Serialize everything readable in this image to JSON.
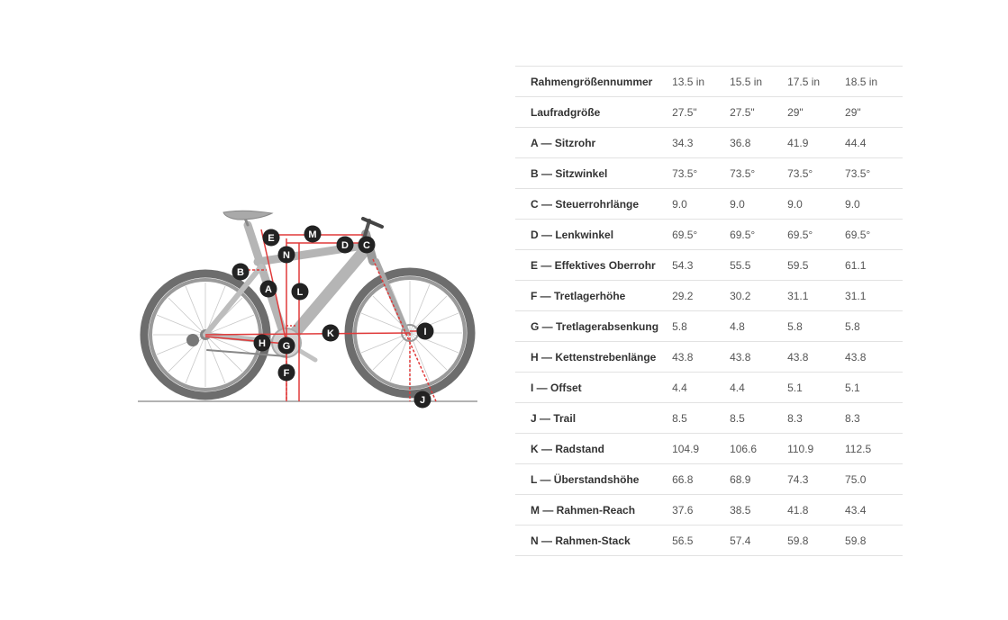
{
  "header": {
    "label": "Rahmengrößennummer",
    "sizes": [
      "13.5 in",
      "15.5 in",
      "17.5 in",
      "18.5 in"
    ]
  },
  "rows": [
    {
      "label": "Laufradgröße",
      "values": [
        "27.5\"",
        "27.5\"",
        "29\"",
        "29\""
      ]
    },
    {
      "label": "A — Sitzrohr",
      "values": [
        "34.3",
        "36.8",
        "41.9",
        "44.4"
      ]
    },
    {
      "label": "B — Sitzwinkel",
      "values": [
        "73.5°",
        "73.5°",
        "73.5°",
        "73.5°"
      ]
    },
    {
      "label": "C — Steuerrohrlänge",
      "values": [
        "9.0",
        "9.0",
        "9.0",
        "9.0"
      ]
    },
    {
      "label": "D — Lenkwinkel",
      "values": [
        "69.5°",
        "69.5°",
        "69.5°",
        "69.5°"
      ]
    },
    {
      "label": "E — Effektives Oberrohr",
      "values": [
        "54.3",
        "55.5",
        "59.5",
        "61.1"
      ]
    },
    {
      "label": "F — Tretlagerhöhe",
      "values": [
        "29.2",
        "30.2",
        "31.1",
        "31.1"
      ]
    },
    {
      "label": "G — Tretlagerabsenkung",
      "values": [
        "5.8",
        "4.8",
        "5.8",
        "5.8"
      ]
    },
    {
      "label": "H — Kettenstrebenlänge",
      "values": [
        "43.8",
        "43.8",
        "43.8",
        "43.8"
      ]
    },
    {
      "label": "I — Offset",
      "values": [
        "4.4",
        "4.4",
        "5.1",
        "5.1"
      ]
    },
    {
      "label": "J — Trail",
      "values": [
        "8.5",
        "8.5",
        "8.3",
        "8.3"
      ]
    },
    {
      "label": "K — Radstand",
      "values": [
        "104.9",
        "106.6",
        "110.9",
        "112.5"
      ]
    },
    {
      "label": "L — Überstandshöhe",
      "values": [
        "66.8",
        "68.9",
        "74.3",
        "75.0"
      ]
    },
    {
      "label": "M — Rahmen-Reach",
      "values": [
        "37.6",
        "38.5",
        "41.8",
        "43.4"
      ]
    },
    {
      "label": "N — Rahmen-Stack",
      "values": [
        "56.5",
        "57.4",
        "59.8",
        "59.8"
      ]
    }
  ],
  "diagram": {
    "markers": [
      "A",
      "B",
      "C",
      "D",
      "E",
      "F",
      "G",
      "H",
      "I",
      "J",
      "K",
      "L",
      "M",
      "N"
    ],
    "colors": {
      "frame": "#b5b5b5",
      "tire": "#6d6d6d",
      "measure": "#e03a3a",
      "marker": "#222222"
    }
  }
}
